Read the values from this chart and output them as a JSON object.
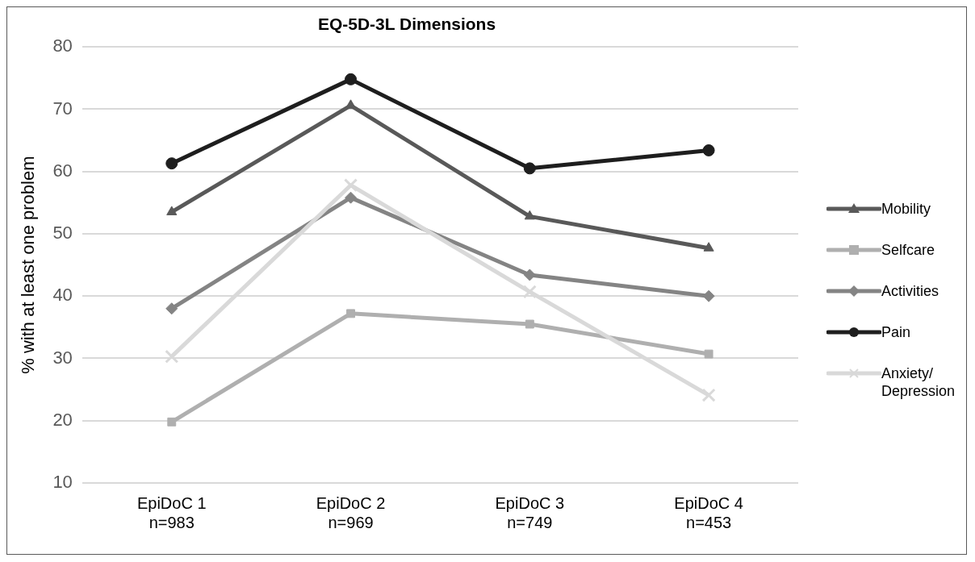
{
  "chart_data": {
    "type": "line",
    "title": "EQ-5D-3L Dimensions",
    "ylabel": "% with at least one problem",
    "categories": [
      "EpiDoC 1\nn=983",
      "EpiDoC 2\nn=969",
      "EpiDoC 3\nn=749",
      "EpiDoC 4\nn=453"
    ],
    "series": [
      {
        "name": "Mobility",
        "color": "#595959",
        "marker": "triangle",
        "values": [
          53.5,
          70.6,
          52.8,
          47.7
        ]
      },
      {
        "name": "Selfcare",
        "color": "#afafaf",
        "marker": "square",
        "values": [
          19.8,
          37.2,
          35.5,
          30.7
        ]
      },
      {
        "name": "Activities",
        "color": "#848484",
        "marker": "diamond",
        "values": [
          38.0,
          55.8,
          43.4,
          40.0
        ]
      },
      {
        "name": "Pain",
        "color": "#1e1e1e",
        "marker": "circle",
        "values": [
          61.3,
          74.8,
          60.5,
          63.4
        ]
      },
      {
        "name": "Anxiety/ Depression",
        "color": "#d9d9d9",
        "marker": "cross",
        "values": [
          30.3,
          57.8,
          40.7,
          24.1
        ]
      }
    ],
    "ylim": [
      10,
      80
    ],
    "yticks": [
      10,
      20,
      30,
      40,
      50,
      60,
      70,
      80
    ],
    "grid": "y",
    "legend": "right",
    "line_style": "solid"
  }
}
